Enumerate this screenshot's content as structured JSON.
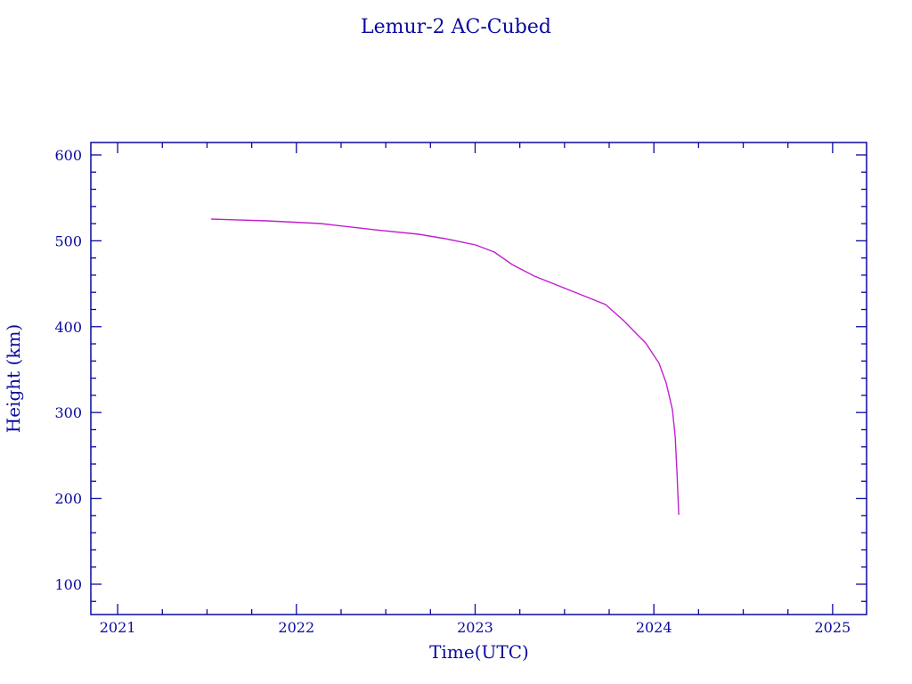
{
  "chart_data": {
    "type": "line",
    "title": "Lemur-2 AC-Cubed",
    "xlabel": "Time(UTC)",
    "ylabel": "Height (km)",
    "xlim": [
      2020.85,
      2025.19
    ],
    "ylim": [
      64.7,
      614.5
    ],
    "xticks": [
      2021,
      2022,
      2023,
      2024,
      2025
    ],
    "xtick_labels": [
      "2021",
      "2022",
      "2023",
      "2024",
      "2025"
    ],
    "x_minor_step": 0.25,
    "yticks": [
      100,
      200,
      300,
      400,
      500,
      600
    ],
    "ytick_labels": [
      "100",
      "200",
      "300",
      "400",
      "500",
      "600"
    ],
    "y_minor_step": 20,
    "grid": false,
    "axis_color": "#0a0aa0",
    "series": [
      {
        "name": "Height",
        "color": "#c020d0",
        "x": [
          2021.523,
          2021.837,
          2022.136,
          2022.435,
          2022.684,
          2022.833,
          2023.002,
          2023.107,
          2023.207,
          2023.331,
          2023.531,
          2023.73,
          2023.83,
          2023.904,
          2023.954,
          2024.029,
          2024.069,
          2024.104,
          2024.119,
          2024.129,
          2024.139
        ],
        "y": [
          525.3,
          523.2,
          520.1,
          512.9,
          507.7,
          502.5,
          495.2,
          486.9,
          472.4,
          458.9,
          442.3,
          425.7,
          407.1,
          391.5,
          381.1,
          357.3,
          334.4,
          303.3,
          272.2,
          230.7,
          180.9
        ]
      }
    ]
  }
}
